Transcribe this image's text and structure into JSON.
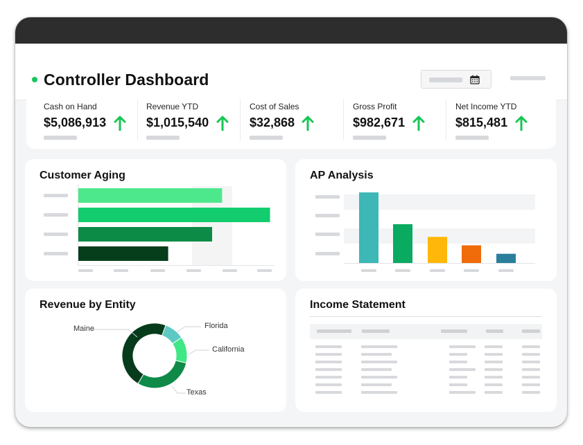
{
  "header": {
    "title": "Controller Dashboard",
    "status_color": "#1bc45a",
    "date_icon": "calendar-icon"
  },
  "kpis": [
    {
      "label": "Cash on Hand",
      "value": "$5,086,913",
      "trend": "up"
    },
    {
      "label": "Revenue YTD",
      "value": "$1,015,540",
      "trend": "up"
    },
    {
      "label": "Cost of Sales",
      "value": "$32,868",
      "trend": "up"
    },
    {
      "label": "Gross Profit",
      "value": "$982,671",
      "trend": "up"
    },
    {
      "label": "Net Income YTD",
      "value": "$815,481",
      "trend": "up"
    }
  ],
  "trend_color": "#16c653",
  "customer_aging": {
    "title": "Customer Aging",
    "chart_data": {
      "type": "bar",
      "orientation": "horizontal",
      "values": [
        0.72,
        0.96,
        0.67,
        0.45
      ],
      "colors": [
        "#4ee88c",
        "#12cc6e",
        "#0c8b46",
        "#063e1c"
      ]
    }
  },
  "ap_analysis": {
    "title": "AP Analysis",
    "chart_data": {
      "type": "bar",
      "orientation": "vertical",
      "values": [
        1.0,
        0.55,
        0.37,
        0.25,
        0.13
      ],
      "colors": [
        "#3db8b6",
        "#0aaa60",
        "#ffb70a",
        "#f06b0a",
        "#2b7e9c"
      ]
    }
  },
  "revenue_by_entity": {
    "title": "Revenue by Entity",
    "chart_data": {
      "type": "pie",
      "variant": "donut",
      "series": [
        {
          "name": "Florida",
          "value": 0.1,
          "color": "#5cc9c4"
        },
        {
          "name": "California",
          "value": 0.13,
          "color": "#3fe785"
        },
        {
          "name": "Texas",
          "value": 0.3,
          "color": "#0f8a48"
        },
        {
          "name": "Maine",
          "value": 0.47,
          "color": "#063c1b"
        }
      ]
    }
  },
  "income_statement": {
    "title": "Income Statement"
  }
}
